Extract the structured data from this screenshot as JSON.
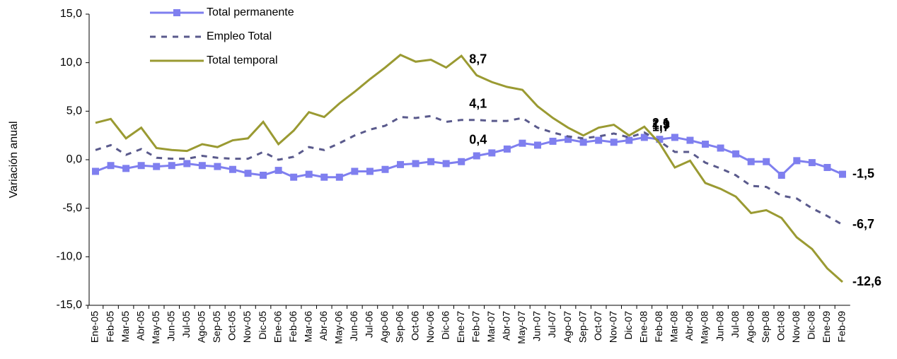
{
  "chart_data": {
    "type": "line",
    "y_label": "Variación anual",
    "categories": [
      "Ene-05",
      "Feb-05",
      "Mar-05",
      "Abr-05",
      "May-05",
      "Jun-05",
      "Jul-05",
      "Ago-05",
      "Sep-05",
      "Oct-05",
      "Nov-05",
      "Dic-05",
      "Ene-06",
      "Feb-06",
      "Mar-06",
      "Abr-06",
      "May-06",
      "Jun-06",
      "Jul-06",
      "Ago-06",
      "Sep-06",
      "Oct-06",
      "Nov-06",
      "Dic-06",
      "Ene-07",
      "Feb-07",
      "Mar-07",
      "Abr-07",
      "May-07",
      "Jun-07",
      "Jul-07",
      "Ago-07",
      "Sep-07",
      "Oct-07",
      "Nov-07",
      "Dic-07",
      "Ene-08",
      "Feb-08",
      "Mar-08",
      "Abr-08",
      "May-08",
      "Jun-08",
      "Jul-08",
      "Ago-08",
      "Sep-08",
      "Oct-08",
      "Nov-08",
      "Dic-08",
      "Ene-09",
      "Feb-09"
    ],
    "series": [
      {
        "name": "Total permanente",
        "color": "#7f7fef",
        "label_color": "#1414d2",
        "dash": false,
        "marker": true,
        "values": [
          -1.2,
          -0.6,
          -0.9,
          -0.6,
          -0.7,
          -0.6,
          -0.4,
          -0.6,
          -0.7,
          -1.0,
          -1.4,
          -1.6,
          -1.1,
          -1.8,
          -1.5,
          -1.8,
          -1.8,
          -1.2,
          -1.2,
          -1.0,
          -0.5,
          -0.4,
          -0.2,
          -0.4,
          -0.2,
          0.4,
          0.7,
          1.1,
          1.7,
          1.5,
          1.9,
          2.1,
          1.8,
          2.0,
          1.8,
          2.0,
          2.3,
          2.1,
          2.3,
          2.0,
          1.6,
          1.2,
          0.6,
          -0.2,
          -0.2,
          -1.6,
          -0.1,
          -0.3,
          -0.8,
          -1.5
        ],
        "value_labels": [
          null,
          null,
          null,
          null,
          null,
          null,
          null,
          null,
          null,
          null,
          null,
          null,
          null,
          null,
          null,
          null,
          null,
          null,
          null,
          null,
          null,
          null,
          null,
          null,
          null,
          "0,4",
          null,
          null,
          null,
          null,
          null,
          null,
          null,
          null,
          null,
          null,
          null,
          "2,1",
          null,
          null,
          null,
          null,
          null,
          null,
          null,
          null,
          null,
          null,
          null,
          "-1,5"
        ]
      },
      {
        "name": "Empleo Total",
        "color": "#5a5a8c",
        "label_color": "#8a8a8a",
        "dash": true,
        "marker": false,
        "values": [
          1.0,
          1.5,
          0.5,
          1.1,
          0.2,
          0.1,
          0.1,
          0.4,
          0.2,
          0.1,
          0.1,
          0.8,
          0.0,
          0.3,
          1.3,
          1.0,
          1.7,
          2.5,
          3.1,
          3.5,
          4.4,
          4.3,
          4.5,
          3.9,
          4.1,
          4.1,
          4.0,
          4.0,
          4.3,
          3.3,
          2.8,
          2.4,
          2.2,
          2.4,
          2.7,
          2.3,
          2.8,
          1.9,
          0.8,
          0.8,
          -0.3,
          -0.9,
          -1.6,
          -2.7,
          -2.8,
          -3.7,
          -4.0,
          -5.0,
          -5.8,
          -6.7
        ],
        "value_labels": [
          null,
          null,
          null,
          null,
          null,
          null,
          null,
          null,
          null,
          null,
          null,
          null,
          null,
          null,
          null,
          null,
          null,
          null,
          null,
          null,
          null,
          null,
          null,
          null,
          null,
          "4,1",
          null,
          null,
          null,
          null,
          null,
          null,
          null,
          null,
          null,
          null,
          null,
          "1,9",
          null,
          null,
          null,
          null,
          null,
          null,
          null,
          null,
          null,
          null,
          null,
          "-6,7"
        ]
      },
      {
        "name": "Total temporal",
        "color": "#9a9a32",
        "label_color": "#35a035",
        "dash": false,
        "marker": false,
        "values": [
          3.8,
          4.2,
          2.2,
          3.3,
          1.2,
          1.0,
          0.9,
          1.6,
          1.3,
          2.0,
          2.2,
          3.9,
          1.6,
          3.0,
          4.9,
          4.4,
          5.8,
          7.0,
          8.3,
          9.5,
          10.8,
          10.1,
          10.3,
          9.5,
          10.7,
          8.7,
          8.0,
          7.5,
          7.2,
          5.5,
          4.3,
          3.3,
          2.5,
          3.3,
          3.6,
          2.5,
          3.4,
          1.7,
          -0.8,
          -0.1,
          -2.4,
          -3.0,
          -3.8,
          -5.5,
          -5.2,
          -6.0,
          -8.0,
          -9.2,
          -11.2,
          -12.6
        ],
        "value_labels": [
          null,
          null,
          null,
          null,
          null,
          null,
          null,
          null,
          null,
          null,
          null,
          null,
          null,
          null,
          null,
          null,
          null,
          null,
          null,
          null,
          null,
          null,
          null,
          null,
          null,
          "8,7",
          null,
          null,
          null,
          null,
          null,
          null,
          null,
          null,
          null,
          null,
          null,
          "1,7",
          null,
          null,
          null,
          null,
          null,
          null,
          null,
          null,
          null,
          null,
          null,
          "-12,6"
        ]
      }
    ],
    "ylim": [
      -15,
      15
    ],
    "yticks": [
      {
        "value": -15,
        "label": "-15,0"
      },
      {
        "value": -10,
        "label": "-10,0"
      },
      {
        "value": -5,
        "label": "-5,0"
      },
      {
        "value": 0,
        "label": "0,0"
      },
      {
        "value": 5,
        "label": "5,0"
      },
      {
        "value": 10,
        "label": "10,0"
      },
      {
        "value": 15,
        "label": "15,0"
      }
    ],
    "grid": false,
    "legend": "top-left"
  }
}
